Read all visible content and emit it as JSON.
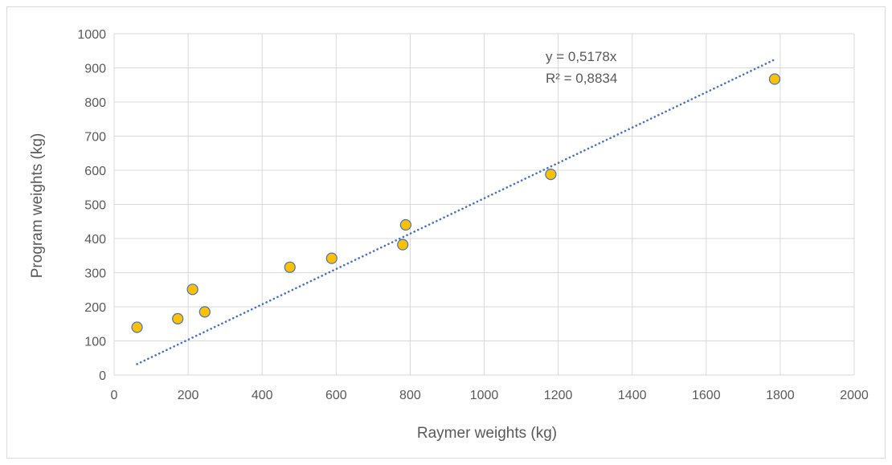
{
  "chart_data": {
    "type": "scatter",
    "title": "",
    "xlabel": "Raymer weights (kg)",
    "ylabel": "Program weights (kg)",
    "xlim": [
      0,
      2000
    ],
    "ylim": [
      0,
      1000
    ],
    "x_ticks": [
      0,
      200,
      400,
      600,
      800,
      1000,
      1200,
      1400,
      1600,
      1800,
      2000
    ],
    "y_ticks": [
      0,
      100,
      200,
      300,
      400,
      500,
      600,
      700,
      800,
      900,
      1000
    ],
    "x_tick_labels": [
      "0",
      "200",
      "400",
      "600",
      "800",
      "1000",
      "1200",
      "1400",
      "1600",
      "1800",
      "2000"
    ],
    "y_tick_labels": [
      "0",
      "100",
      "200",
      "300",
      "400",
      "500",
      "600",
      "700",
      "800",
      "900",
      "1000"
    ],
    "grid": true,
    "legend": "none",
    "series": [
      {
        "points": [
          {
            "x": 62,
            "y": 140
          },
          {
            "x": 172,
            "y": 165
          },
          {
            "x": 212,
            "y": 251
          },
          {
            "x": 245,
            "y": 185
          },
          {
            "x": 475,
            "y": 316
          },
          {
            "x": 588,
            "y": 342
          },
          {
            "x": 780,
            "y": 382
          },
          {
            "x": 788,
            "y": 440
          },
          {
            "x": 1180,
            "y": 588
          },
          {
            "x": 1785,
            "y": 867
          }
        ],
        "marker_fill": "#ffc000",
        "marker_edge": "#4472c4"
      }
    ],
    "trendline": {
      "type": "linear-through-origin",
      "slope": 0.5178,
      "x_range": [
        62,
        1785
      ],
      "color": "#4472c4",
      "style": "dotted",
      "equation_label": "y = 0,5178x",
      "r2_label": "R² = 0,8834"
    },
    "colors": {
      "grid": "#d9d9d9",
      "text": "#595959"
    }
  }
}
